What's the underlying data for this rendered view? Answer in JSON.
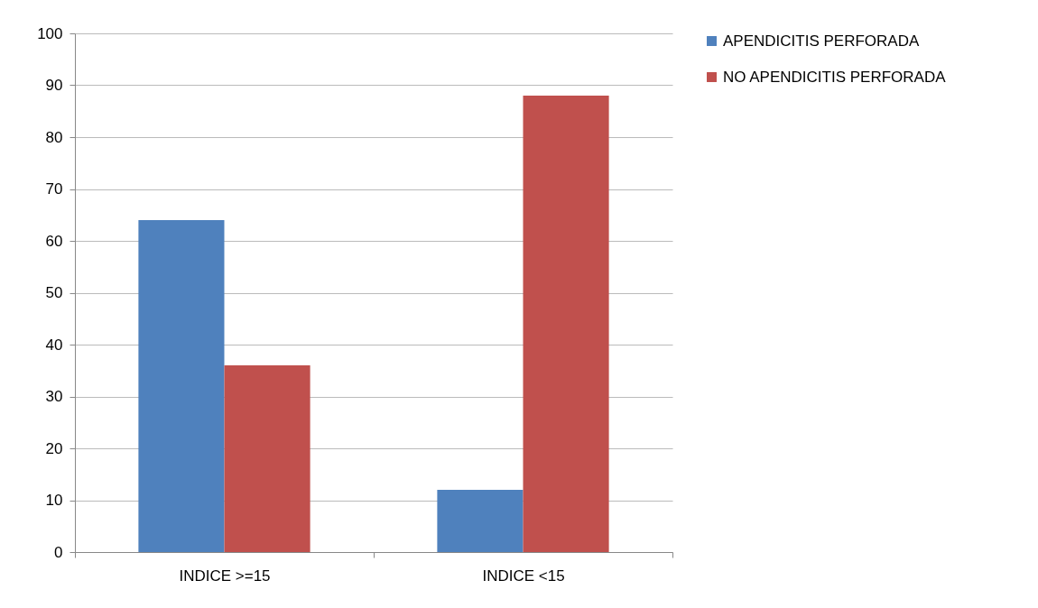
{
  "chart_data": {
    "type": "bar",
    "categories": [
      "INDICE >=15",
      "INDICE <15"
    ],
    "series": [
      {
        "name": "APENDICITIS PERFORADA",
        "color": "#4f81bd",
        "values": [
          64,
          12
        ]
      },
      {
        "name": "NO APENDICITIS PERFORADA",
        "color": "#c0504d",
        "values": [
          36,
          88
        ]
      }
    ],
    "ylim": [
      0,
      100
    ],
    "yticks": [
      0,
      10,
      20,
      30,
      40,
      50,
      60,
      70,
      80,
      90,
      100
    ],
    "grid": "y",
    "legend": "right"
  }
}
